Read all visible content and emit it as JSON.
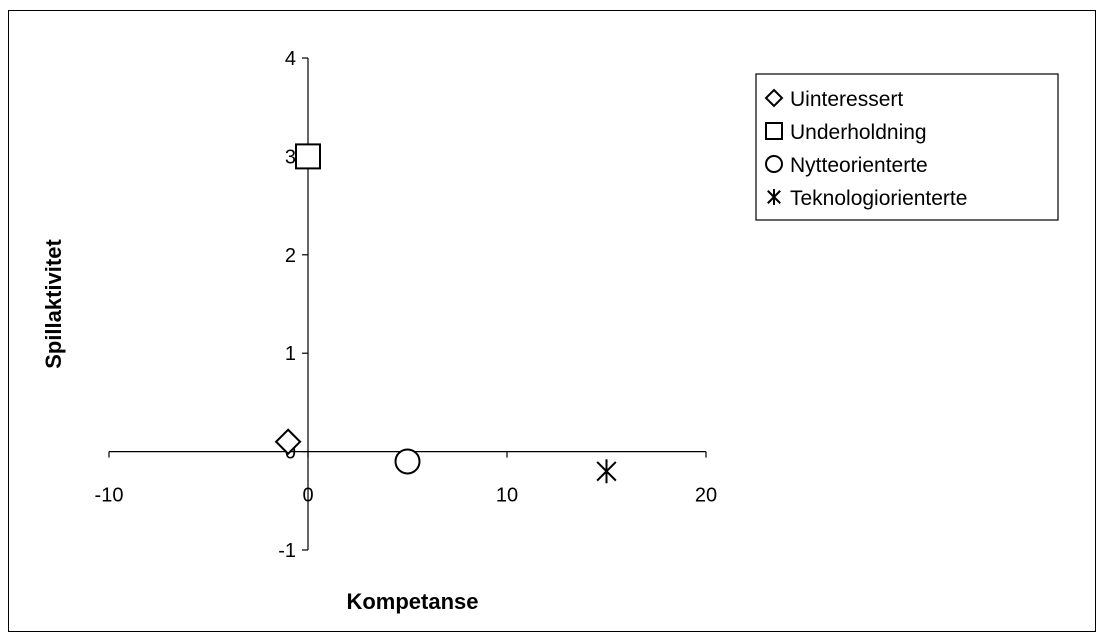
{
  "chart_data": {
    "type": "scatter",
    "title": "",
    "xlabel": "Kompetanse",
    "ylabel": "Spillaktivitet",
    "xlim": [
      -10,
      20
    ],
    "ylim": [
      -1,
      4
    ],
    "xticks": [
      -10,
      0,
      10,
      20
    ],
    "yticks": [
      -1,
      0,
      1,
      2,
      3,
      4
    ],
    "grid": false,
    "legend_position": "top-right",
    "series": [
      {
        "name": "Uinteressert",
        "marker": "diamond",
        "points": [
          {
            "x": -1,
            "y": 0.1
          }
        ]
      },
      {
        "name": "Underholdning",
        "marker": "square",
        "points": [
          {
            "x": 0,
            "y": 3
          }
        ]
      },
      {
        "name": "Nytteorienterte",
        "marker": "circle",
        "points": [
          {
            "x": 5,
            "y": -0.1
          }
        ]
      },
      {
        "name": "Teknologiorienterte",
        "marker": "asterisk",
        "points": [
          {
            "x": 15,
            "y": -0.2
          }
        ]
      }
    ]
  }
}
